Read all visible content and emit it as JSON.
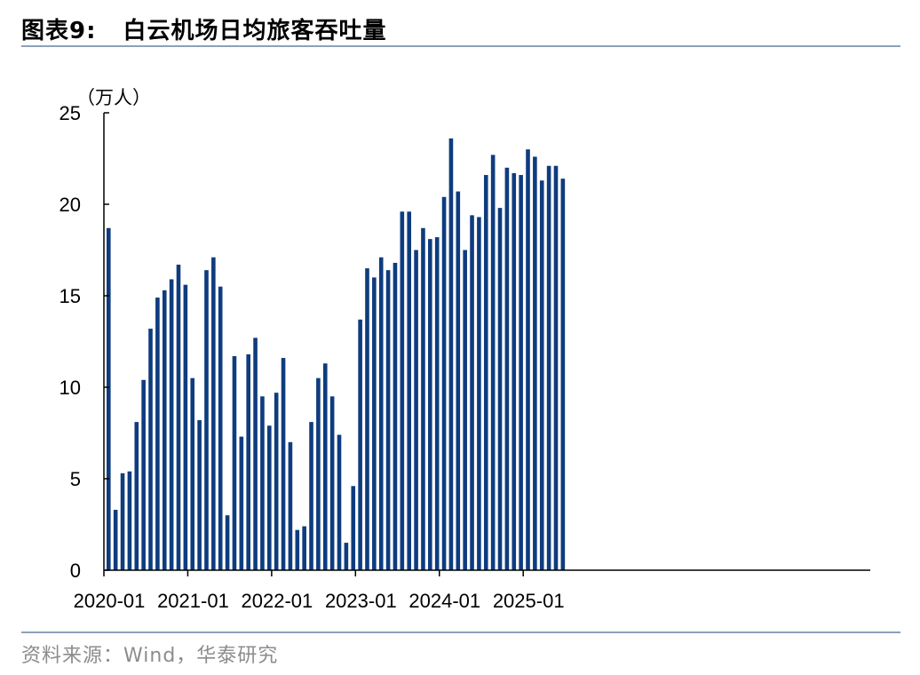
{
  "header": {
    "figure_label": "图表9:",
    "title": "白云机场日均旅客吞吐量"
  },
  "footer": {
    "source": "资料来源：Wind，华泰研究"
  },
  "colors": {
    "bar": "#0e3c7e",
    "rule": "#8ea0b8",
    "axis": "#000000"
  },
  "chart_data": {
    "type": "bar",
    "title": "白云机场日均旅客吞吐量",
    "ylabel": "（万人）",
    "xlabel": "",
    "ylim": [
      0,
      25
    ],
    "yticks": [
      0,
      5,
      10,
      15,
      20,
      25
    ],
    "xtick_labels": [
      "2020-01",
      "2021-01",
      "2022-01",
      "2023-01",
      "2024-01",
      "2025-01"
    ],
    "grid": false,
    "categories": [
      "2020-01",
      "2020-02",
      "2020-03",
      "2020-04",
      "2020-05",
      "2020-06",
      "2020-07",
      "2020-08",
      "2020-09",
      "2020-10",
      "2020-11",
      "2020-12",
      "2021-01",
      "2021-02",
      "2021-03",
      "2021-04",
      "2021-05",
      "2021-06",
      "2021-07",
      "2021-08",
      "2021-09",
      "2021-10",
      "2021-11",
      "2021-12",
      "2022-01",
      "2022-02",
      "2022-03",
      "2022-04",
      "2022-05",
      "2022-06",
      "2022-07",
      "2022-08",
      "2022-09",
      "2022-10",
      "2022-11",
      "2022-12",
      "2023-01",
      "2023-02",
      "2023-03",
      "2023-04",
      "2023-05",
      "2023-06",
      "2023-07",
      "2023-08",
      "2023-09",
      "2023-10",
      "2023-11",
      "2023-12",
      "2024-01",
      "2024-02",
      "2024-03",
      "2024-04",
      "2024-05",
      "2024-06",
      "2024-07",
      "2024-08",
      "2024-09",
      "2024-10",
      "2024-11",
      "2024-12",
      "2025-01",
      "2025-02",
      "2025-03",
      "2025-04",
      "2025-05",
      "2025-06"
    ],
    "values": [
      18.7,
      3.3,
      5.3,
      5.4,
      8.1,
      10.4,
      13.2,
      14.9,
      15.3,
      15.9,
      16.7,
      15.6,
      10.5,
      8.2,
      16.4,
      17.1,
      15.5,
      3.0,
      11.7,
      7.3,
      11.8,
      12.7,
      9.5,
      7.9,
      9.7,
      11.6,
      7.0,
      2.2,
      2.4,
      8.1,
      10.5,
      11.3,
      9.5,
      7.4,
      1.5,
      4.6,
      13.7,
      16.5,
      16.0,
      17.1,
      16.4,
      16.8,
      19.6,
      19.6,
      17.5,
      18.7,
      18.1,
      18.2,
      20.4,
      23.6,
      20.7,
      17.5,
      19.4,
      19.3,
      21.6,
      22.7,
      19.8,
      22.0,
      21.7,
      21.6,
      23.0,
      22.6,
      21.3,
      22.1,
      22.1,
      21.4
    ]
  }
}
